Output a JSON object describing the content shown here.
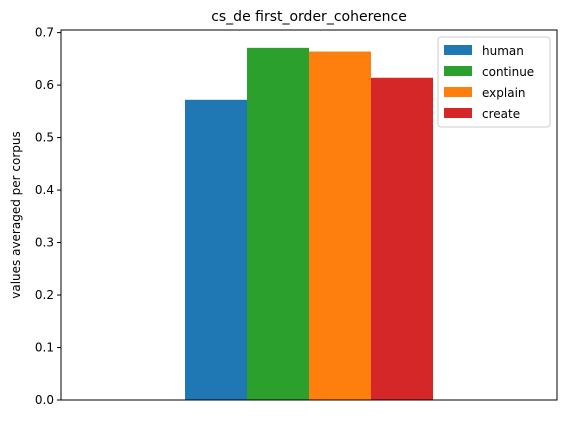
{
  "chart_data": {
    "type": "bar",
    "title": "cs_de first_order_coherence",
    "xlabel": "",
    "ylabel": "values averaged per corpus",
    "categories": [
      ""
    ],
    "series": [
      {
        "name": "human",
        "values": [
          0.572
        ],
        "color": "#1f77b4"
      },
      {
        "name": "continue",
        "values": [
          0.671
        ],
        "color": "#2ca02c"
      },
      {
        "name": "explain",
        "values": [
          0.664
        ],
        "color": "#ff7f0e"
      },
      {
        "name": "create",
        "values": [
          0.614
        ],
        "color": "#d62728"
      }
    ],
    "ylim": [
      0,
      0.705
    ],
    "yticks": [
      "0.0",
      "0.1",
      "0.2",
      "0.3",
      "0.4",
      "0.5",
      "0.6",
      "0.7"
    ],
    "grid": false,
    "legend_position": "top-right"
  }
}
